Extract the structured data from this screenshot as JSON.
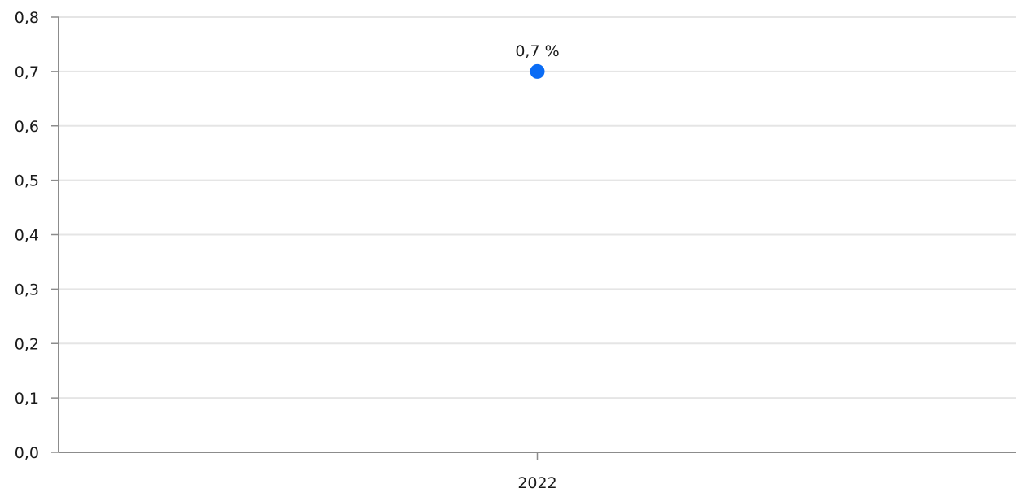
{
  "chart_data": {
    "type": "scatter",
    "title": "",
    "xlabel": "",
    "ylabel": "",
    "categories": [
      "2022"
    ],
    "values": [
      0.7
    ],
    "data_labels": [
      "0,7 %"
    ],
    "y_tick_labels": [
      "0,0",
      "0,1",
      "0,2",
      "0,3",
      "0,4",
      "0,5",
      "0,6",
      "0,7",
      "0,8"
    ],
    "y_ticks": [
      0,
      0.1,
      0.2,
      0.3,
      0.4,
      0.5,
      0.6,
      0.7,
      0.8
    ],
    "ylim": [
      0,
      0.8
    ],
    "grid": true,
    "legend": "none",
    "colors": {
      "point": "#0a6cf5",
      "grid": "#e5e5e5",
      "axis": "#8c8c8c",
      "text": "#1a1a1a"
    }
  }
}
